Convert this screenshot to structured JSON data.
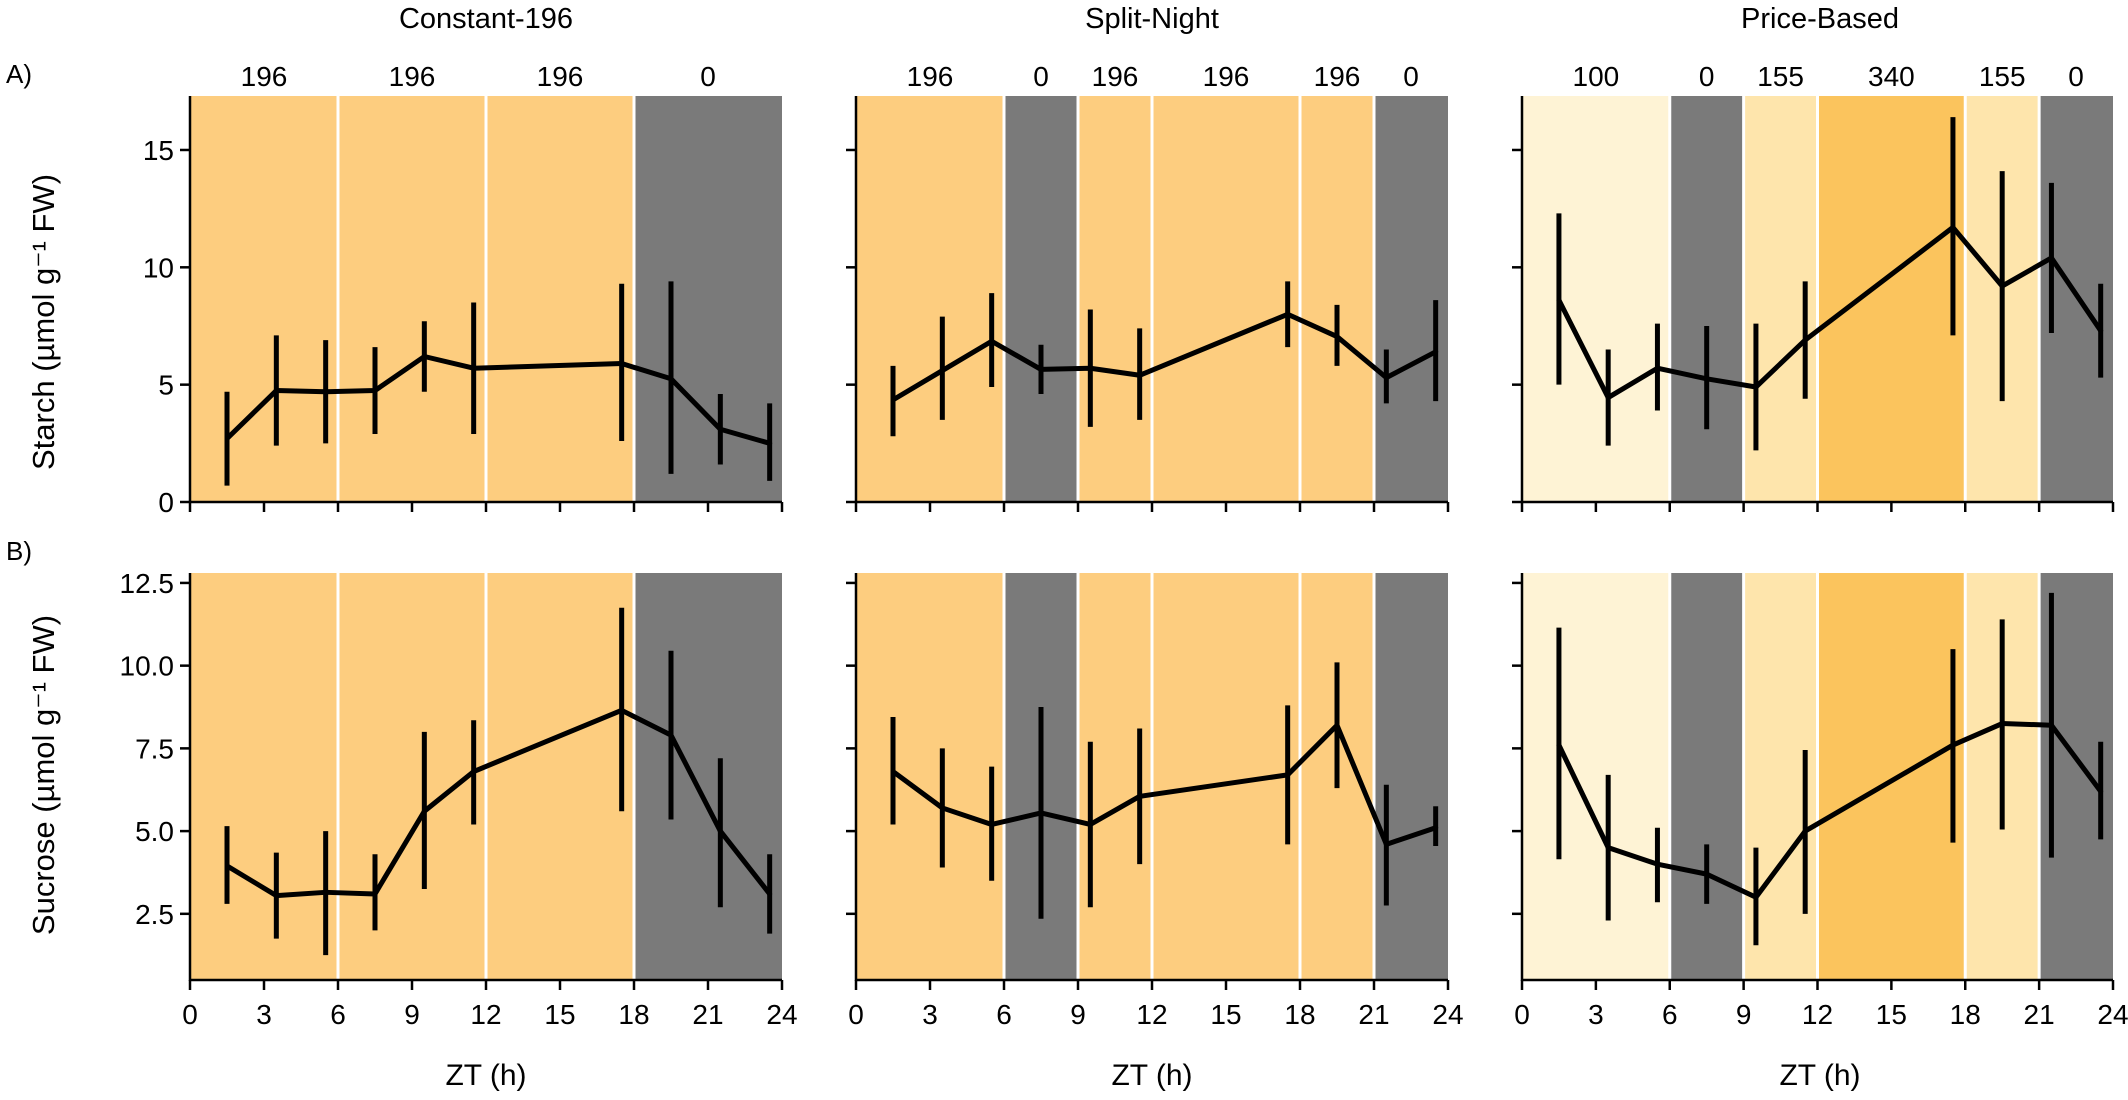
{
  "figure": {
    "column_titles": [
      "Constant-196",
      "Split-Night",
      "Price-Based"
    ],
    "row_labels": [
      "A)",
      "B)"
    ],
    "xlabel": "ZT (h)",
    "xticks": [
      0,
      3,
      6,
      9,
      12,
      15,
      18,
      21,
      24
    ],
    "colors": {
      "light_196": "#FDCD7F",
      "light_100": "#FEF3D5",
      "light_155": "#FEE5AC",
      "light_340": "#FBC45D",
      "dark_0": "#7A7A7A",
      "separator": "#FFFFFF",
      "line": "#000000"
    }
  },
  "chart_data": [
    {
      "type": "line",
      "panel": "A1",
      "row": 0,
      "col": 0,
      "title": "Constant-196",
      "ylabel": "Starch (µmol g⁻¹ FW)",
      "xlim": [
        0,
        24
      ],
      "ylim": [
        0,
        17.3
      ],
      "yticks": [
        0,
        5,
        10,
        15
      ],
      "ytick_labels": [
        "0",
        "5",
        "10",
        "15"
      ],
      "grid": false,
      "light_periods": [
        {
          "start": 0,
          "end": 6,
          "value": "196",
          "color": "#FDCD7F"
        },
        {
          "start": 6,
          "end": 12,
          "value": "196",
          "color": "#FDCD7F"
        },
        {
          "start": 12,
          "end": 18,
          "value": "196",
          "color": "#FDCD7F"
        },
        {
          "start": 18,
          "end": 24,
          "value": "0",
          "color": "#7A7A7A"
        }
      ],
      "series": [
        {
          "x": [
            1.5,
            3.5,
            5.5,
            7.5,
            9.5,
            11.5,
            17.5,
            19.5,
            21.5,
            23.5
          ],
          "y": [
            2.7,
            4.75,
            4.7,
            4.75,
            6.2,
            5.7,
            5.9,
            5.25,
            3.1,
            2.5
          ],
          "err_low": [
            0.7,
            2.4,
            2.5,
            2.9,
            4.7,
            2.9,
            2.6,
            1.2,
            1.6,
            0.9
          ],
          "err_high": [
            4.7,
            7.1,
            6.9,
            6.6,
            7.7,
            8.5,
            9.3,
            9.4,
            4.6,
            4.2
          ]
        }
      ]
    },
    {
      "type": "line",
      "panel": "A2",
      "row": 0,
      "col": 1,
      "title": "Split-Night",
      "ylabel": "",
      "xlim": [
        0,
        24
      ],
      "ylim": [
        0,
        17.3
      ],
      "yticks": [
        0,
        5,
        10,
        15
      ],
      "ytick_labels": [
        "",
        "",
        "",
        ""
      ],
      "grid": false,
      "light_periods": [
        {
          "start": 0,
          "end": 6,
          "value": "196",
          "color": "#FDCD7F"
        },
        {
          "start": 6,
          "end": 9,
          "value": "0",
          "color": "#7A7A7A"
        },
        {
          "start": 9,
          "end": 12,
          "value": "196",
          "color": "#FDCD7F"
        },
        {
          "start": 12,
          "end": 18,
          "value": "196",
          "color": "#FDCD7F"
        },
        {
          "start": 18,
          "end": 21,
          "value": "196",
          "color": "#FDCD7F"
        },
        {
          "start": 21,
          "end": 24,
          "value": "0",
          "color": "#7A7A7A"
        }
      ],
      "series": [
        {
          "x": [
            1.5,
            3.5,
            5.5,
            7.5,
            9.5,
            11.5,
            17.5,
            19.5,
            21.5,
            23.5
          ],
          "y": [
            4.35,
            5.6,
            6.85,
            5.65,
            5.7,
            5.4,
            8.0,
            7.05,
            5.3,
            6.4
          ],
          "err_low": [
            2.8,
            3.5,
            4.9,
            4.6,
            3.2,
            3.5,
            6.6,
            5.8,
            4.2,
            4.3
          ],
          "err_high": [
            5.8,
            7.9,
            8.9,
            6.7,
            8.2,
            7.4,
            9.4,
            8.4,
            6.5,
            8.6
          ]
        }
      ]
    },
    {
      "type": "line",
      "panel": "A3",
      "row": 0,
      "col": 2,
      "title": "Price-Based",
      "ylabel": "",
      "xlim": [
        0,
        24
      ],
      "ylim": [
        0,
        17.3
      ],
      "yticks": [
        0,
        5,
        10,
        15
      ],
      "ytick_labels": [
        "",
        "",
        "",
        ""
      ],
      "grid": false,
      "light_periods": [
        {
          "start": 0,
          "end": 6,
          "value": "100",
          "color": "#FEF3D5"
        },
        {
          "start": 6,
          "end": 9,
          "value": "0",
          "color": "#7A7A7A"
        },
        {
          "start": 9,
          "end": 12,
          "value": "155",
          "color": "#FEE5AC"
        },
        {
          "start": 12,
          "end": 18,
          "value": "340",
          "color": "#FBC45D"
        },
        {
          "start": 18,
          "end": 21,
          "value": "155",
          "color": "#FEE5AC"
        },
        {
          "start": 21,
          "end": 24,
          "value": "0",
          "color": "#7A7A7A"
        }
      ],
      "series": [
        {
          "x": [
            1.5,
            3.5,
            5.5,
            7.5,
            9.5,
            11.5,
            17.5,
            19.5,
            21.5,
            23.5
          ],
          "y": [
            8.6,
            4.45,
            5.7,
            5.25,
            4.9,
            6.9,
            11.7,
            9.2,
            10.4,
            7.3
          ],
          "err_low": [
            5.0,
            2.4,
            3.9,
            3.1,
            2.2,
            4.4,
            7.1,
            4.3,
            7.2,
            5.3
          ],
          "err_high": [
            12.3,
            6.5,
            7.6,
            7.5,
            7.6,
            9.4,
            16.4,
            14.1,
            13.6,
            9.3
          ]
        }
      ]
    },
    {
      "type": "line",
      "panel": "B1",
      "row": 1,
      "col": 0,
      "title": "",
      "ylabel": "Sucrose (µmol g⁻¹ FW)",
      "xlim": [
        0,
        24
      ],
      "ylim": [
        0.5,
        12.8
      ],
      "yticks": [
        2.5,
        5.0,
        7.5,
        10.0,
        12.5
      ],
      "ytick_labels": [
        "2.5",
        "5.0",
        "7.5",
        "10.0",
        "12.5"
      ],
      "grid": false,
      "light_periods": [
        {
          "start": 0,
          "end": 6,
          "value": "196",
          "color": "#FDCD7F"
        },
        {
          "start": 6,
          "end": 12,
          "value": "196",
          "color": "#FDCD7F"
        },
        {
          "start": 12,
          "end": 18,
          "value": "196",
          "color": "#FDCD7F"
        },
        {
          "start": 18,
          "end": 24,
          "value": "0",
          "color": "#7A7A7A"
        }
      ],
      "series": [
        {
          "x": [
            1.5,
            3.5,
            5.5,
            7.5,
            9.5,
            11.5,
            17.5,
            19.5,
            21.5,
            23.5
          ],
          "y": [
            3.95,
            3.05,
            3.15,
            3.1,
            5.6,
            6.8,
            8.65,
            7.9,
            5.0,
            3.1
          ],
          "err_low": [
            2.8,
            1.75,
            1.25,
            2.0,
            3.25,
            5.2,
            5.6,
            5.35,
            2.7,
            1.9
          ],
          "err_high": [
            5.15,
            4.35,
            5.0,
            4.3,
            8.0,
            8.35,
            11.75,
            10.45,
            7.2,
            4.3
          ]
        }
      ]
    },
    {
      "type": "line",
      "panel": "B2",
      "row": 1,
      "col": 1,
      "title": "",
      "ylabel": "",
      "xlim": [
        0,
        24
      ],
      "ylim": [
        0.5,
        12.8
      ],
      "yticks": [
        2.5,
        5.0,
        7.5,
        10.0,
        12.5
      ],
      "ytick_labels": [
        "",
        "",
        "",
        "",
        ""
      ],
      "grid": false,
      "light_periods": [
        {
          "start": 0,
          "end": 6,
          "value": "196",
          "color": "#FDCD7F"
        },
        {
          "start": 6,
          "end": 9,
          "value": "0",
          "color": "#7A7A7A"
        },
        {
          "start": 9,
          "end": 12,
          "value": "196",
          "color": "#FDCD7F"
        },
        {
          "start": 12,
          "end": 18,
          "value": "196",
          "color": "#FDCD7F"
        },
        {
          "start": 18,
          "end": 21,
          "value": "196",
          "color": "#FDCD7F"
        },
        {
          "start": 21,
          "end": 24,
          "value": "0",
          "color": "#7A7A7A"
        }
      ],
      "series": [
        {
          "x": [
            1.5,
            3.5,
            5.5,
            7.5,
            9.5,
            11.5,
            17.5,
            19.5,
            21.5,
            23.5
          ],
          "y": [
            6.8,
            5.7,
            5.2,
            5.55,
            5.2,
            6.05,
            6.7,
            8.2,
            4.6,
            5.1
          ],
          "err_low": [
            5.2,
            3.9,
            3.5,
            2.35,
            2.7,
            4.0,
            4.6,
            6.3,
            2.75,
            4.55
          ],
          "err_high": [
            8.45,
            7.5,
            6.95,
            8.75,
            7.7,
            8.1,
            8.8,
            10.1,
            6.4,
            5.75
          ]
        }
      ]
    },
    {
      "type": "line",
      "panel": "B3",
      "row": 1,
      "col": 2,
      "title": "",
      "ylabel": "",
      "xlim": [
        0,
        24
      ],
      "ylim": [
        0.5,
        12.8
      ],
      "yticks": [
        2.5,
        5.0,
        7.5,
        10.0,
        12.5
      ],
      "ytick_labels": [
        "",
        "",
        "",
        "",
        ""
      ],
      "grid": false,
      "light_periods": [
        {
          "start": 0,
          "end": 6,
          "value": "100",
          "color": "#FEF3D5"
        },
        {
          "start": 6,
          "end": 9,
          "value": "0",
          "color": "#7A7A7A"
        },
        {
          "start": 9,
          "end": 12,
          "value": "155",
          "color": "#FEE5AC"
        },
        {
          "start": 12,
          "end": 18,
          "value": "340",
          "color": "#FBC45D"
        },
        {
          "start": 18,
          "end": 21,
          "value": "155",
          "color": "#FEE5AC"
        },
        {
          "start": 21,
          "end": 24,
          "value": "0",
          "color": "#7A7A7A"
        }
      ],
      "series": [
        {
          "x": [
            1.5,
            3.5,
            5.5,
            7.5,
            9.5,
            11.5,
            17.5,
            19.5,
            21.5,
            23.5
          ],
          "y": [
            7.6,
            4.5,
            4.0,
            3.7,
            3.0,
            5.0,
            7.6,
            8.25,
            8.2,
            6.2
          ],
          "err_low": [
            4.15,
            2.3,
            2.85,
            2.8,
            1.55,
            2.5,
            4.65,
            5.05,
            4.2,
            4.75
          ],
          "err_high": [
            11.15,
            6.7,
            5.1,
            4.6,
            4.5,
            7.45,
            10.5,
            11.4,
            12.2,
            7.7
          ]
        }
      ]
    }
  ]
}
